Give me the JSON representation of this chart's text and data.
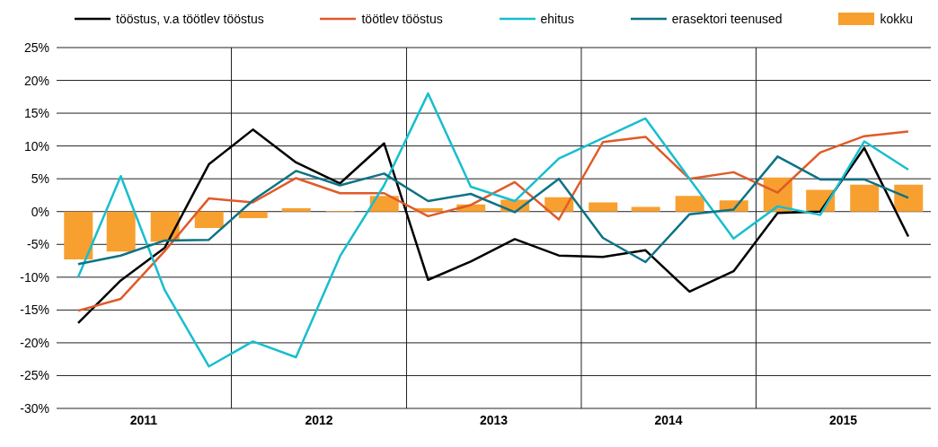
{
  "chart_data": {
    "type": "line",
    "x": [
      "2011-02-15",
      "2011-05-15",
      "2011-08-15",
      "2011-11-15",
      "2012-02-15",
      "2012-05-15",
      "2012-08-15",
      "2012-11-15",
      "2013-02-15",
      "2013-05-15",
      "2013-08-15",
      "2013-11-15",
      "2014-02-15",
      "2014-05-15",
      "2014-08-15",
      "2014-11-15",
      "2015-02-15",
      "2015-05-15",
      "2015-08-15",
      "2015-11-15"
    ],
    "series": [
      {
        "name": "tööstus, v.a töötlev tööstus",
        "color": "#000000",
        "values": [
          -17,
          -10.5,
          -5.5,
          7.2,
          12.5,
          7.5,
          4.3,
          10.4,
          -10.4,
          -7.6,
          -4.2,
          -6.7,
          -6.9,
          -5.9,
          -12.2,
          -9.1,
          -0.2,
          0,
          9.7,
          -3.8
        ]
      },
      {
        "name": "töötlev tööstus",
        "color": "#e05a28",
        "values": [
          -15.1,
          -13.3,
          -6,
          2,
          1.4,
          5.1,
          2.8,
          2.8,
          -0.7,
          1,
          4.5,
          -1.2,
          10.6,
          11.4,
          5,
          6,
          2.9,
          9,
          11.5,
          12.2
        ]
      },
      {
        "name": "ehitus",
        "color": "#17becf",
        "values": [
          -10,
          5.4,
          -12,
          -23.6,
          -19.8,
          -22.2,
          -6.8,
          4,
          18,
          3.8,
          1.6,
          8.1,
          11.2,
          14.2,
          5,
          -4.1,
          0.8,
          -0.5,
          10.7,
          6.4
        ]
      },
      {
        "name": "erasektori teenused",
        "color": "#0e7285",
        "values": [
          -8,
          -6.7,
          -4.4,
          -4.3,
          1.7,
          6.2,
          4,
          5.8,
          1.6,
          2.7,
          -0.1,
          5,
          -4,
          -7.7,
          -0.4,
          0.3,
          8.4,
          4.9,
          4.9,
          2.1
        ]
      },
      {
        "name": "kokku",
        "type": "bar",
        "color": "#f7a030",
        "values": [
          -7.3,
          -6.1,
          -4.6,
          -2.5,
          -1,
          0.5,
          0.1,
          2.4,
          0.5,
          1.1,
          1.8,
          2.2,
          1.4,
          0.7,
          2.4,
          1.7,
          5.2,
          3.3,
          4.1,
          4.1
        ]
      }
    ],
    "xlim": [
      "2011-01-01",
      "2016-01-01"
    ],
    "xticks": [
      {
        "value": "2011-07-02",
        "label": "2011"
      },
      {
        "value": "2012-01-01",
        "label": null
      },
      {
        "value": "2012-07-02",
        "label": "2012"
      },
      {
        "value": "2013-01-01",
        "label": null
      },
      {
        "value": "2013-07-02",
        "label": "2013"
      },
      {
        "value": "2014-01-01",
        "label": null
      },
      {
        "value": "2014-07-02",
        "label": "2014"
      },
      {
        "value": "2015-01-01",
        "label": null
      },
      {
        "value": "2015-07-02",
        "label": "2015"
      }
    ],
    "ylim": [
      -30,
      25
    ],
    "yticks": [
      {
        "value": -30,
        "label": "-30%"
      },
      {
        "value": -25,
        "label": "-25%"
      },
      {
        "value": -20,
        "label": "-20%"
      },
      {
        "value": -15,
        "label": "-15%"
      },
      {
        "value": -10,
        "label": "-10%"
      },
      {
        "value": -5,
        "label": "-5%"
      },
      {
        "value": 0,
        "label": "0%"
      },
      {
        "value": 5,
        "label": "5%"
      },
      {
        "value": 10,
        "label": "10%"
      },
      {
        "value": 15,
        "label": "15%"
      },
      {
        "value": 20,
        "label": "20%"
      },
      {
        "value": 25,
        "label": "25%"
      }
    ],
    "grid": true,
    "legend": "top",
    "marker": "none",
    "line_style": "solid"
  }
}
